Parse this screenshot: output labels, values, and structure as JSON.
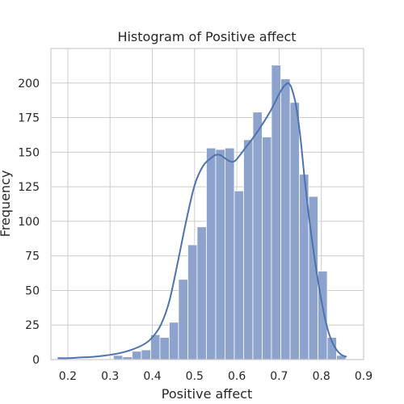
{
  "chart_data": {
    "type": "bar",
    "title": "Histogram of Positive affect",
    "xlabel": "Positive affect",
    "ylabel": "Frequency",
    "xlim": [
      0.16,
      0.9
    ],
    "ylim": [
      0,
      225
    ],
    "xticks": [
      0.2,
      0.3,
      0.4,
      0.5,
      0.6,
      0.7,
      0.8,
      0.9
    ],
    "xtick_labels": [
      "0.2",
      "0.3",
      "0.4",
      "0.5",
      "0.6",
      "0.7",
      "0.8",
      "0.9"
    ],
    "yticks": [
      0,
      25,
      50,
      75,
      100,
      125,
      150,
      175,
      200
    ],
    "ytick_labels": [
      "0",
      "25",
      "50",
      "75",
      "100",
      "125",
      "150",
      "175",
      "200"
    ],
    "grid": true,
    "bar_color": "#8ea3cc",
    "bar_edge_color": "#ffffff",
    "kde_color": "#4c72b0",
    "bins": [
      {
        "x0": 0.176,
        "x1": 0.198,
        "count": 1
      },
      {
        "x0": 0.198,
        "x1": 0.22,
        "count": 0
      },
      {
        "x0": 0.22,
        "x1": 0.242,
        "count": 0
      },
      {
        "x0": 0.242,
        "x1": 0.264,
        "count": 0
      },
      {
        "x0": 0.264,
        "x1": 0.286,
        "count": 0
      },
      {
        "x0": 0.286,
        "x1": 0.308,
        "count": 0
      },
      {
        "x0": 0.308,
        "x1": 0.33,
        "count": 3
      },
      {
        "x0": 0.33,
        "x1": 0.352,
        "count": 2
      },
      {
        "x0": 0.352,
        "x1": 0.374,
        "count": 6
      },
      {
        "x0": 0.374,
        "x1": 0.396,
        "count": 7
      },
      {
        "x0": 0.396,
        "x1": 0.418,
        "count": 18
      },
      {
        "x0": 0.418,
        "x1": 0.44,
        "count": 16
      },
      {
        "x0": 0.44,
        "x1": 0.462,
        "count": 27
      },
      {
        "x0": 0.462,
        "x1": 0.484,
        "count": 58
      },
      {
        "x0": 0.484,
        "x1": 0.506,
        "count": 83
      },
      {
        "x0": 0.506,
        "x1": 0.528,
        "count": 96
      },
      {
        "x0": 0.528,
        "x1": 0.55,
        "count": 153
      },
      {
        "x0": 0.55,
        "x1": 0.572,
        "count": 152
      },
      {
        "x0": 0.572,
        "x1": 0.594,
        "count": 153
      },
      {
        "x0": 0.594,
        "x1": 0.616,
        "count": 122
      },
      {
        "x0": 0.616,
        "x1": 0.638,
        "count": 159
      },
      {
        "x0": 0.638,
        "x1": 0.66,
        "count": 179
      },
      {
        "x0": 0.66,
        "x1": 0.682,
        "count": 161
      },
      {
        "x0": 0.682,
        "x1": 0.704,
        "count": 213
      },
      {
        "x0": 0.704,
        "x1": 0.726,
        "count": 203
      },
      {
        "x0": 0.726,
        "x1": 0.748,
        "count": 186
      },
      {
        "x0": 0.748,
        "x1": 0.77,
        "count": 134
      },
      {
        "x0": 0.77,
        "x1": 0.792,
        "count": 118
      },
      {
        "x0": 0.792,
        "x1": 0.814,
        "count": 64
      },
      {
        "x0": 0.814,
        "x1": 0.836,
        "count": 16
      },
      {
        "x0": 0.836,
        "x1": 0.858,
        "count": 3
      }
    ],
    "kde": {
      "x": [
        0.176,
        0.2,
        0.23,
        0.26,
        0.29,
        0.32,
        0.35,
        0.38,
        0.4,
        0.42,
        0.44,
        0.46,
        0.48,
        0.5,
        0.52,
        0.54,
        0.55,
        0.56,
        0.57,
        0.58,
        0.59,
        0.6,
        0.62,
        0.64,
        0.66,
        0.68,
        0.7,
        0.71,
        0.72,
        0.725,
        0.73,
        0.74,
        0.75,
        0.76,
        0.77,
        0.78,
        0.79,
        0.8,
        0.81,
        0.82,
        0.83,
        0.84,
        0.85,
        0.86
      ],
      "y": [
        1,
        1,
        1.5,
        2,
        3,
        4.5,
        7,
        11,
        16,
        25,
        42,
        70,
        100,
        126,
        140,
        146,
        148,
        148,
        146,
        144,
        143,
        145,
        153,
        161,
        170,
        180,
        192,
        197,
        200,
        199,
        196,
        184,
        162,
        132,
        105,
        82,
        61,
        43,
        28,
        17,
        10,
        5.5,
        3,
        2
      ]
    }
  }
}
